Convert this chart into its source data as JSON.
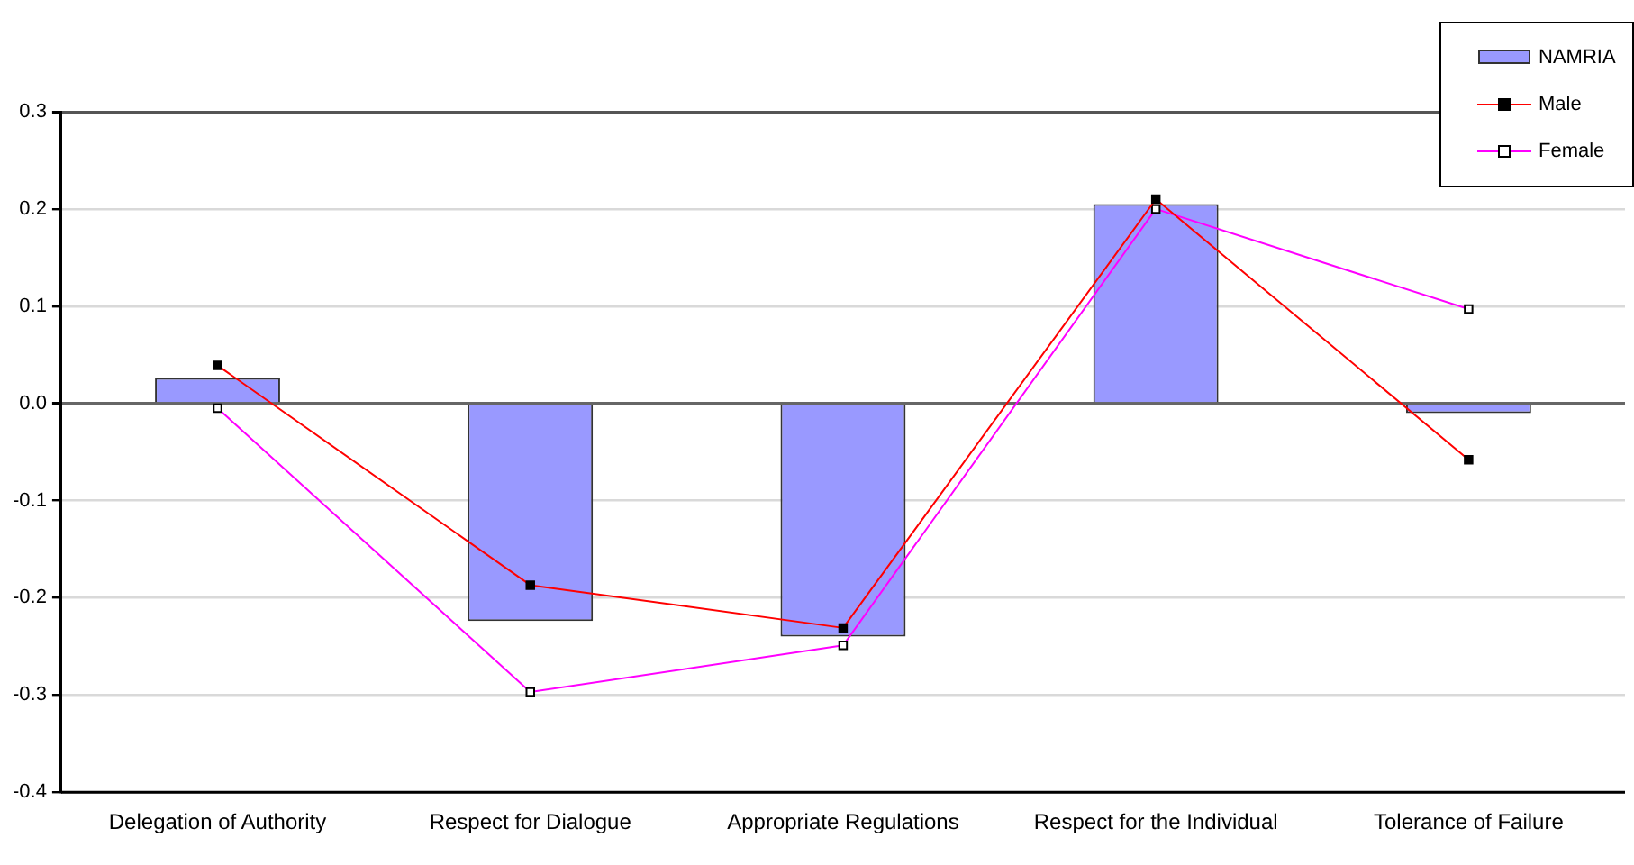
{
  "chart_data": {
    "type": "bar",
    "categories": [
      "Delegation of Authority",
      "Respect for Dialogue",
      "Appropriate Regulations",
      "Respect for the Individual",
      "Tolerance of Failure"
    ],
    "series": [
      {
        "name": "NAMRIA",
        "color": "#9999ff",
        "values": [
          0.026,
          -0.224,
          -0.24,
          0.205,
          -0.01
        ]
      },
      {
        "name": "Male",
        "type": "line",
        "color": "#ff0000",
        "values": [
          0.039,
          -0.187,
          -0.231,
          0.21,
          -0.058
        ]
      },
      {
        "name": "Female",
        "type": "line",
        "color": "#ff00ff",
        "values": [
          -0.005,
          -0.297,
          -0.249,
          0.2,
          0.097
        ]
      }
    ],
    "ylim": [
      -0.4,
      0.3
    ],
    "yticks": [
      {
        "value": -0.4,
        "label": "-0.4"
      },
      {
        "value": -0.3,
        "label": "-0.3"
      },
      {
        "value": -0.2,
        "label": "-0.2"
      },
      {
        "value": -0.1,
        "label": "-0.1"
      },
      {
        "value": 0,
        "label": "0.0"
      },
      {
        "value": 0.1,
        "label": "0.1"
      },
      {
        "value": 0.2,
        "label": "0.2"
      },
      {
        "value": 0.3,
        "label": "0.3"
      }
    ],
    "grid": "y",
    "legend": "top right",
    "marker": "square"
  }
}
